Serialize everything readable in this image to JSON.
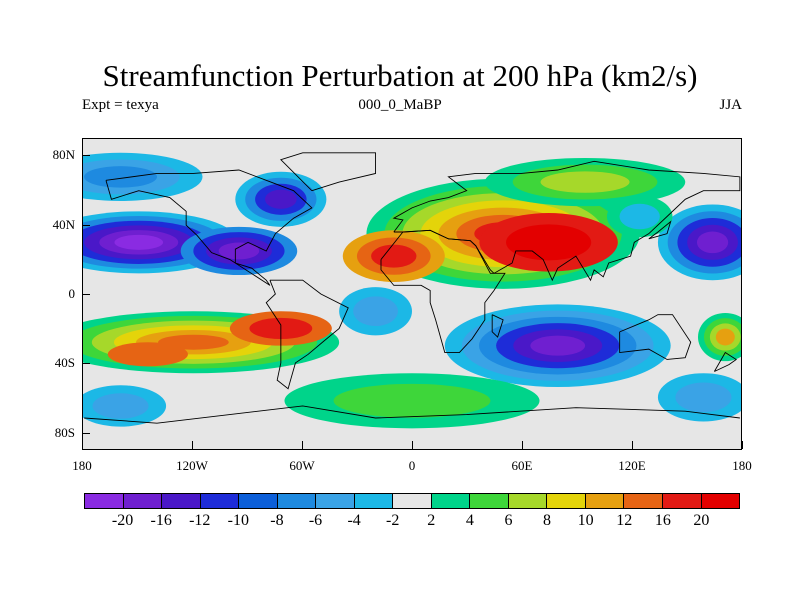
{
  "title": "Streamfunction Perturbation at 200 hPa (km2/s)",
  "subtitle_left": "Expt = texya",
  "subtitle_center": "000_0_MaBP",
  "subtitle_right": "JJA",
  "y_axis": {
    "labels": [
      "80N",
      "40N",
      "0",
      "40S",
      "80S"
    ],
    "values": [
      80,
      40,
      0,
      -40,
      -80
    ]
  },
  "x_axis": {
    "labels": [
      "180",
      "120W",
      "60W",
      "0",
      "60E",
      "120E",
      "180"
    ],
    "values": [
      -180,
      -120,
      -60,
      0,
      60,
      120,
      180
    ]
  },
  "colorbar": {
    "labels": [
      "-20",
      "-16",
      "-12",
      "-10",
      "-8",
      "-6",
      "-4",
      "-2",
      "2",
      "4",
      "6",
      "8",
      "10",
      "12",
      "16",
      "20"
    ],
    "colors": [
      "#8a2be2",
      "#6f1fd0",
      "#4a18c8",
      "#1e2cd8",
      "#0c5fd9",
      "#1e8ae0",
      "#3aa3e6",
      "#1cb8e6",
      "#e6e6e6",
      "#00d48a",
      "#3ed63a",
      "#a6d82a",
      "#e4d40a",
      "#e6a010",
      "#e66414",
      "#e21a14",
      "#e30000"
    ]
  },
  "map_data": {
    "lon_range": [
      -180,
      180
    ],
    "lat_range": [
      -90,
      90
    ],
    "blobs": [
      {
        "lon": -150,
        "lat": 30,
        "rx": 55,
        "ry": 18,
        "levels": [
          "#1cb8e6",
          "#1e8ae0",
          "#1e2cd8",
          "#4a18c8",
          "#6f1fd0",
          "#8a2be2"
        ]
      },
      {
        "lon": -95,
        "lat": 25,
        "rx": 32,
        "ry": 14,
        "levels": [
          "#1e8ae0",
          "#1e2cd8",
          "#4a18c8",
          "#6f1fd0"
        ]
      },
      {
        "lon": -72,
        "lat": 55,
        "rx": 25,
        "ry": 16,
        "levels": [
          "#1cb8e6",
          "#1e8ae0",
          "#1e2cd8",
          "#4a18c8"
        ]
      },
      {
        "lon": -160,
        "lat": 68,
        "rx": 45,
        "ry": 14,
        "levels": [
          "#1cb8e6",
          "#3aa3e6",
          "#1e8ae0"
        ]
      },
      {
        "lon": 165,
        "lat": 30,
        "rx": 30,
        "ry": 22,
        "levels": [
          "#1cb8e6",
          "#1e8ae0",
          "#1e2cd8",
          "#4a18c8",
          "#6f1fd0"
        ]
      },
      {
        "lon": 50,
        "lat": 35,
        "rx": 75,
        "ry": 32,
        "levels": [
          "#00d48a",
          "#3ed63a",
          "#a6d82a",
          "#e4d40a",
          "#e6a010",
          "#e66414",
          "#e21a14"
        ]
      },
      {
        "lon": 75,
        "lat": 30,
        "rx": 38,
        "ry": 17,
        "levels": [
          "#e21a14",
          "#e30000"
        ]
      },
      {
        "lon": -10,
        "lat": 22,
        "rx": 28,
        "ry": 15,
        "levels": [
          "#e6a010",
          "#e66414",
          "#e21a14"
        ]
      },
      {
        "lon": 95,
        "lat": 65,
        "rx": 55,
        "ry": 14,
        "levels": [
          "#00d48a",
          "#3ed63a",
          "#a6d82a"
        ]
      },
      {
        "lon": -120,
        "lat": -28,
        "rx": 80,
        "ry": 18,
        "levels": [
          "#00d48a",
          "#3ed63a",
          "#a6d82a",
          "#e4d40a",
          "#e6a010",
          "#e66414"
        ]
      },
      {
        "lon": -72,
        "lat": -20,
        "rx": 28,
        "ry": 10,
        "levels": [
          "#e66414",
          "#e21a14"
        ]
      },
      {
        "lon": -145,
        "lat": -35,
        "rx": 22,
        "ry": 7,
        "levels": [
          "#e66414"
        ]
      },
      {
        "lon": 80,
        "lat": -30,
        "rx": 62,
        "ry": 24,
        "levels": [
          "#1cb8e6",
          "#3aa3e6",
          "#1e8ae0",
          "#1e2cd8",
          "#4a18c8",
          "#6f1fd0"
        ]
      },
      {
        "lon": 0,
        "lat": -62,
        "rx": 70,
        "ry": 16,
        "levels": [
          "#00d48a",
          "#3ed63a"
        ]
      },
      {
        "lon": -160,
        "lat": -65,
        "rx": 25,
        "ry": 12,
        "levels": [
          "#1cb8e6",
          "#3aa3e6"
        ]
      },
      {
        "lon": 160,
        "lat": -60,
        "rx": 25,
        "ry": 14,
        "levels": [
          "#1cb8e6",
          "#3aa3e6"
        ]
      },
      {
        "lon": 172,
        "lat": -25,
        "rx": 15,
        "ry": 14,
        "levels": [
          "#00d48a",
          "#3ed63a",
          "#a6d82a",
          "#e6a010"
        ]
      },
      {
        "lon": -20,
        "lat": -10,
        "rx": 20,
        "ry": 14,
        "levels": [
          "#1cb8e6",
          "#3aa3e6"
        ]
      },
      {
        "lon": 125,
        "lat": 45,
        "rx": 18,
        "ry": 12,
        "levels": [
          "#00d48a",
          "#1cb8e6"
        ]
      }
    ],
    "coastlines": [
      [
        [
          -168,
          66
        ],
        [
          -140,
          70
        ],
        [
          -120,
          70
        ],
        [
          -95,
          72
        ],
        [
          -80,
          66
        ],
        [
          -65,
          60
        ],
        [
          -55,
          50
        ],
        [
          -65,
          44
        ],
        [
          -75,
          35
        ],
        [
          -80,
          25
        ],
        [
          -90,
          30
        ],
        [
          -97,
          26
        ],
        [
          -97,
          18
        ],
        [
          -88,
          15
        ],
        [
          -80,
          8
        ],
        [
          -78,
          5
        ],
        [
          -100,
          20
        ],
        [
          -110,
          24
        ],
        [
          -118,
          34
        ],
        [
          -124,
          40
        ],
        [
          -124,
          48
        ],
        [
          -133,
          56
        ],
        [
          -150,
          60
        ],
        [
          -165,
          55
        ],
        [
          -168,
          66
        ]
      ],
      [
        [
          -78,
          8
        ],
        [
          -75,
          0
        ],
        [
          -80,
          -5
        ],
        [
          -72,
          -18
        ],
        [
          -72,
          -40
        ],
        [
          -74,
          -50
        ],
        [
          -68,
          -55
        ],
        [
          -64,
          -40
        ],
        [
          -57,
          -35
        ],
        [
          -48,
          -27
        ],
        [
          -40,
          -20
        ],
        [
          -35,
          -8
        ],
        [
          -50,
          0
        ],
        [
          -60,
          8
        ],
        [
          -78,
          8
        ]
      ],
      [
        [
          -10,
          36
        ],
        [
          -5,
          43
        ],
        [
          -10,
          44
        ],
        [
          0,
          50
        ],
        [
          10,
          54
        ],
        [
          20,
          56
        ],
        [
          30,
          60
        ],
        [
          20,
          68
        ],
        [
          35,
          70
        ],
        [
          60,
          70
        ],
        [
          80,
          72
        ],
        [
          100,
          77
        ],
        [
          130,
          72
        ],
        [
          160,
          70
        ],
        [
          180,
          68
        ],
        [
          180,
          60
        ],
        [
          160,
          60
        ],
        [
          150,
          55
        ],
        [
          140,
          45
        ],
        [
          130,
          35
        ],
        [
          122,
          30
        ],
        [
          120,
          22
        ],
        [
          108,
          18
        ],
        [
          105,
          10
        ],
        [
          100,
          14
        ],
        [
          98,
          8
        ],
        [
          90,
          22
        ],
        [
          80,
          15
        ],
        [
          77,
          8
        ],
        [
          72,
          20
        ],
        [
          66,
          25
        ],
        [
          57,
          25
        ],
        [
          55,
          18
        ],
        [
          45,
          12
        ],
        [
          43,
          14
        ],
        [
          35,
          28
        ],
        [
          32,
          31
        ],
        [
          20,
          32
        ],
        [
          10,
          37
        ],
        [
          -5,
          36
        ],
        [
          -10,
          36
        ]
      ],
      [
        [
          -17,
          20
        ],
        [
          -17,
          14
        ],
        [
          -10,
          5
        ],
        [
          5,
          5
        ],
        [
          10,
          2
        ],
        [
          10,
          -5
        ],
        [
          13,
          -15
        ],
        [
          18,
          -34
        ],
        [
          26,
          -34
        ],
        [
          33,
          -26
        ],
        [
          40,
          -15
        ],
        [
          40,
          -5
        ],
        [
          45,
          2
        ],
        [
          51,
          12
        ],
        [
          43,
          12
        ],
        [
          35,
          28
        ],
        [
          32,
          31
        ],
        [
          20,
          32
        ],
        [
          10,
          37
        ],
        [
          -5,
          36
        ],
        [
          -17,
          20
        ]
      ],
      [
        [
          114,
          -22
        ],
        [
          114,
          -34
        ],
        [
          130,
          -32
        ],
        [
          140,
          -38
        ],
        [
          150,
          -37
        ],
        [
          153,
          -28
        ],
        [
          143,
          -12
        ],
        [
          135,
          -12
        ],
        [
          130,
          -15
        ],
        [
          114,
          -22
        ]
      ],
      [
        [
          -180,
          -72
        ],
        [
          -140,
          -75
        ],
        [
          -60,
          -65
        ],
        [
          -20,
          -72
        ],
        [
          30,
          -70
        ],
        [
          90,
          -66
        ],
        [
          150,
          -68
        ],
        [
          180,
          -72
        ]
      ],
      [
        [
          44,
          -12
        ],
        [
          50,
          -15
        ],
        [
          47,
          -25
        ],
        [
          44,
          -22
        ],
        [
          44,
          -12
        ]
      ],
      [
        [
          166,
          -45
        ],
        [
          174,
          -41
        ],
        [
          178,
          -38
        ],
        [
          172,
          -34
        ],
        [
          166,
          -45
        ]
      ],
      [
        [
          -55,
          60
        ],
        [
          -40,
          65
        ],
        [
          -20,
          70
        ],
        [
          -20,
          82
        ],
        [
          -60,
          82
        ],
        [
          -72,
          78
        ],
        [
          -55,
          60
        ]
      ],
      [
        [
          130,
          32
        ],
        [
          140,
          35
        ],
        [
          142,
          42
        ],
        [
          135,
          36
        ],
        [
          130,
          32
        ]
      ]
    ]
  }
}
